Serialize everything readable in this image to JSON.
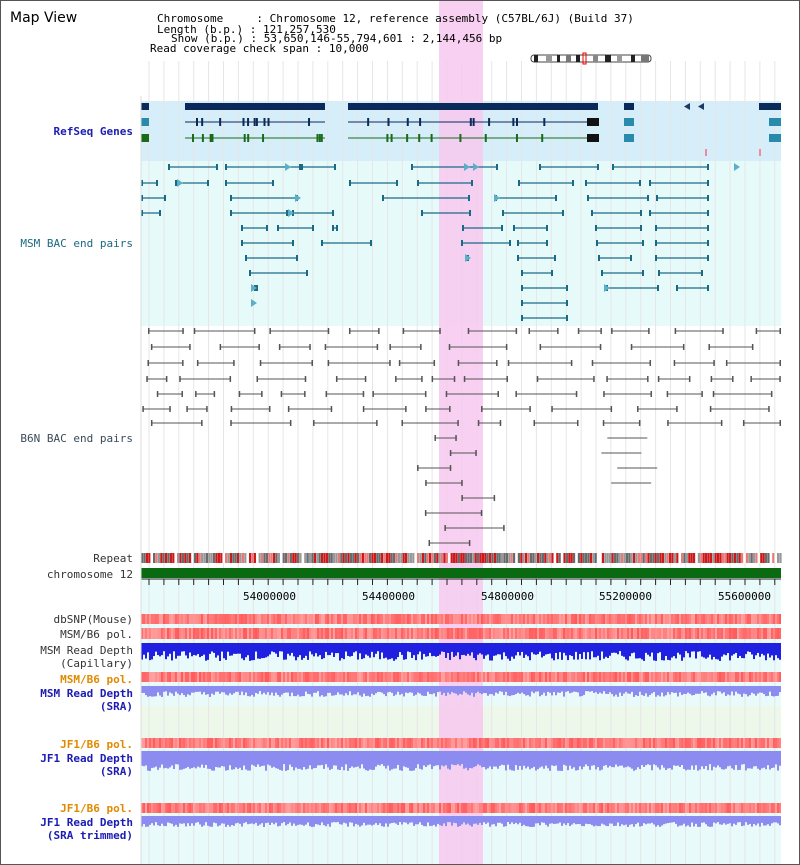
{
  "view": {
    "title": "Map View",
    "chromosome_key": "Chromosome",
    "chromosome_value": "Chromosome 12, reference assembly (C57BL/6J) (Build 37)",
    "length_key": "Length (b.p.)",
    "length_value": "121,257,530",
    "show_key": "Show (b.p.)",
    "show_value": "53,650,146-55,794,601 : 2,144,456 bp",
    "coverage_key": "Read coverage check span",
    "coverage_value": "10,000"
  },
  "tracks": {
    "refseq": "RefSeq Genes",
    "msm_bac": "MSM BAC end pairs",
    "b6n_bac": "B6N BAC end pairs",
    "repeat": "Repeat",
    "chromosome": "chromosome 12",
    "dbsnp": "dbSNP(Mouse)",
    "msm_b6_pol": "MSM/B6 pol.",
    "msm_read_depth_1": "MSM Read Depth",
    "msm_read_depth_1b": "(Capillary)",
    "msm_b6_pol_2": "MSM/B6 pol.",
    "msm_read_depth_2": "MSM Read Depth",
    "msm_read_depth_2b": "(SRA)",
    "jf1_b6_pol": "JF1/B6 pol.",
    "jf1_read_depth": "JF1 Read Depth",
    "jf1_read_depth_b": "(SRA)",
    "jf1_b6_pol_2": "JF1/B6 pol.",
    "jf1_read_depth_2": "JF1 Read Depth",
    "jf1_read_depth_2b": "(SRA trimmed)"
  },
  "axis": {
    "ticks": [
      "54000000",
      "54400000",
      "54800000",
      "55200000",
      "55600000"
    ]
  },
  "colors": {
    "highlight": "#f7c8ee",
    "refseq_bg": "#d6eefa",
    "track_bg": "#e6fafa",
    "dark_navy": "#0b2a5a",
    "chrom_green": "#0a6a12",
    "depth_blue": "#2020e0",
    "depth_light": "#8c8cf0"
  }
}
